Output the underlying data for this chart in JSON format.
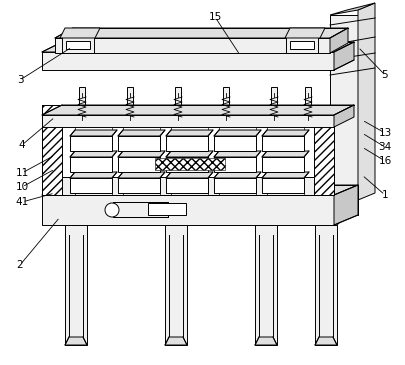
{
  "bg_color": "#ffffff",
  "line_color": "#000000",
  "figsize": [
    4.05,
    3.65
  ],
  "dpi": 100,
  "lw": 0.7,
  "labels_data": [
    [
      "15",
      215,
      348,
      240,
      310
    ],
    [
      "3",
      20,
      285,
      72,
      318
    ],
    [
      "5",
      385,
      290,
      358,
      318
    ],
    [
      "4",
      22,
      220,
      55,
      248
    ],
    [
      "13",
      385,
      232,
      362,
      245
    ],
    [
      "34",
      385,
      218,
      362,
      232
    ],
    [
      "16",
      385,
      204,
      362,
      218
    ],
    [
      "11",
      22,
      192,
      55,
      210
    ],
    [
      "10",
      22,
      178,
      55,
      196
    ],
    [
      "41",
      22,
      163,
      55,
      172
    ],
    [
      "1",
      385,
      170,
      362,
      190
    ],
    [
      "2",
      20,
      100,
      60,
      148
    ]
  ]
}
